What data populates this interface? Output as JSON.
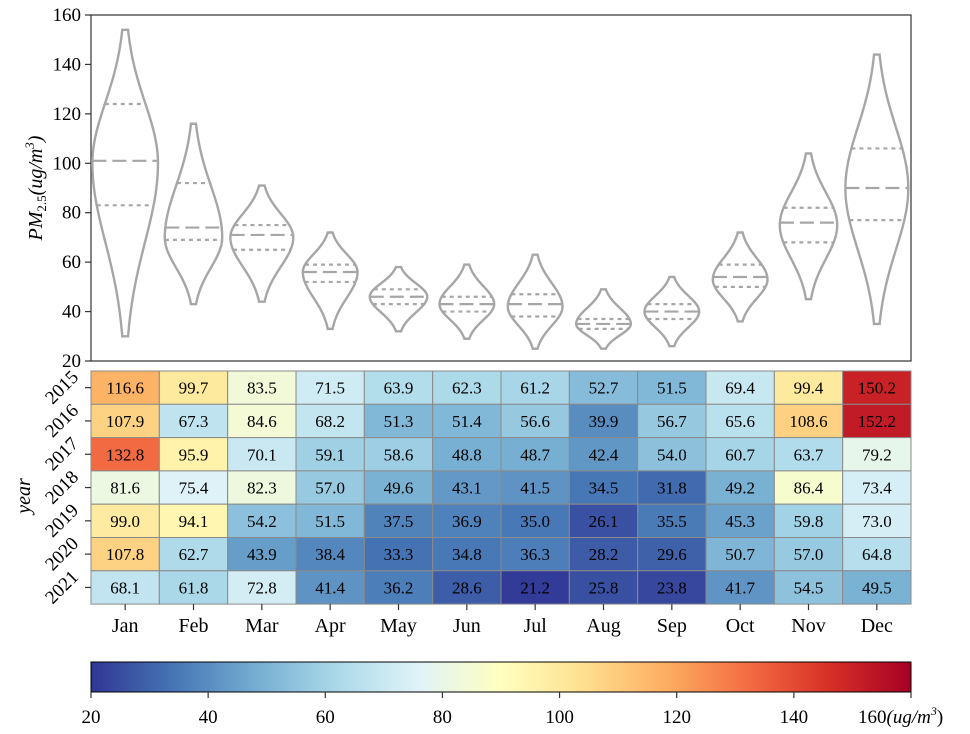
{
  "chart_data": [
    {
      "type": "violin",
      "ylabel_parts": {
        "main": "PM",
        "sub": "2.5",
        "unit_pre": "(ug/m",
        "unit_sup": "3",
        "unit_post": ")"
      },
      "ylim": [
        20,
        160
      ],
      "yticks": [
        "20",
        "40",
        "60",
        "80",
        "100",
        "120",
        "140",
        "160"
      ],
      "line_color": "#a6a6a6",
      "categories": [
        "Jan",
        "Feb",
        "Mar",
        "Apr",
        "May",
        "Jun",
        "Jul",
        "Aug",
        "Sep",
        "Oct",
        "Nov",
        "Dec"
      ],
      "distributions": [
        {
          "min": 30,
          "max": 154,
          "q1": 83,
          "median": 101,
          "q3": 124,
          "peak": 100,
          "max_half_width": 0.48
        },
        {
          "min": 43,
          "max": 116,
          "q1": 69,
          "median": 74,
          "q3": 92,
          "peak": 70,
          "max_half_width": 0.42
        },
        {
          "min": 44,
          "max": 91,
          "q1": 65,
          "median": 71,
          "q3": 75,
          "peak": 70,
          "max_half_width": 0.46
        },
        {
          "min": 33,
          "max": 72,
          "q1": 52,
          "median": 56,
          "q3": 59,
          "peak": 56,
          "max_half_width": 0.4
        },
        {
          "min": 32,
          "max": 58,
          "q1": 43,
          "median": 46,
          "q3": 49,
          "peak": 46,
          "max_half_width": 0.42
        },
        {
          "min": 29,
          "max": 59,
          "q1": 40,
          "median": 43,
          "q3": 46,
          "peak": 43,
          "max_half_width": 0.4
        },
        {
          "min": 25,
          "max": 63,
          "q1": 38,
          "median": 43,
          "q3": 47,
          "peak": 42,
          "max_half_width": 0.4
        },
        {
          "min": 25,
          "max": 49,
          "q1": 33,
          "median": 35,
          "q3": 37,
          "peak": 35,
          "max_half_width": 0.4
        },
        {
          "min": 26,
          "max": 54,
          "q1": 37,
          "median": 40,
          "q3": 43,
          "peak": 40,
          "max_half_width": 0.4
        },
        {
          "min": 36,
          "max": 72,
          "q1": 50,
          "median": 54,
          "q3": 59,
          "peak": 53,
          "max_half_width": 0.4
        },
        {
          "min": 45,
          "max": 104,
          "q1": 68,
          "median": 76,
          "q3": 82,
          "peak": 75,
          "max_half_width": 0.42
        },
        {
          "min": 35,
          "max": 144,
          "q1": 77,
          "median": 90,
          "q3": 106,
          "peak": 90,
          "max_half_width": 0.46
        }
      ]
    },
    {
      "type": "heatmap",
      "ylabel": "year",
      "columns": [
        "Jan",
        "Feb",
        "Mar",
        "Apr",
        "May",
        "Jun",
        "Jul",
        "Aug",
        "Sep",
        "Oct",
        "Nov",
        "Dec"
      ],
      "rows": [
        "2015",
        "2016",
        "2017",
        "2018",
        "2019",
        "2020",
        "2021"
      ],
      "values": [
        [
          "116.6",
          "99.7",
          "83.5",
          "71.5",
          "63.9",
          "62.3",
          "61.2",
          "52.7",
          "51.5",
          "69.4",
          "99.4",
          "150.2"
        ],
        [
          "107.9",
          "67.3",
          "84.6",
          "68.2",
          "51.3",
          "51.4",
          "56.6",
          "39.9",
          "56.7",
          "65.6",
          "108.6",
          "152.2"
        ],
        [
          "132.8",
          "95.9",
          "70.1",
          "59.1",
          "58.6",
          "48.8",
          "48.7",
          "42.4",
          "54.0",
          "60.7",
          "63.7",
          "79.2"
        ],
        [
          "81.6",
          "75.4",
          "82.3",
          "57.0",
          "49.6",
          "43.1",
          "41.5",
          "34.5",
          "31.8",
          "49.2",
          "86.4",
          "73.4"
        ],
        [
          "99.0",
          "94.1",
          "54.2",
          "51.5",
          "37.5",
          "36.9",
          "35.0",
          "26.1",
          "35.5",
          "45.3",
          "59.8",
          "73.0"
        ],
        [
          "107.8",
          "62.7",
          "43.9",
          "38.4",
          "33.3",
          "34.8",
          "36.3",
          "28.2",
          "29.6",
          "50.7",
          "57.0",
          "64.8"
        ],
        [
          "68.1",
          "61.8",
          "72.8",
          "41.4",
          "36.2",
          "28.6",
          "21.2",
          "25.8",
          "23.8",
          "41.7",
          "54.5",
          "49.5"
        ]
      ],
      "colormap": "RdYlBu_r",
      "colormap_stops": [
        "#313695",
        "#4575b4",
        "#74add1",
        "#abd9e9",
        "#e0f3f8",
        "#ffffbf",
        "#fee090",
        "#fdae61",
        "#f46d43",
        "#d73027",
        "#a50026"
      ],
      "vmin": 20,
      "vmax": 160,
      "colorbar_ticks": [
        "20",
        "40",
        "60",
        "80",
        "100",
        "120",
        "140"
      ],
      "colorbar_last_tick": "160",
      "colorbar_unit": {
        "pre": "(ug/m",
        "sup": "3",
        "post": ")"
      }
    }
  ]
}
